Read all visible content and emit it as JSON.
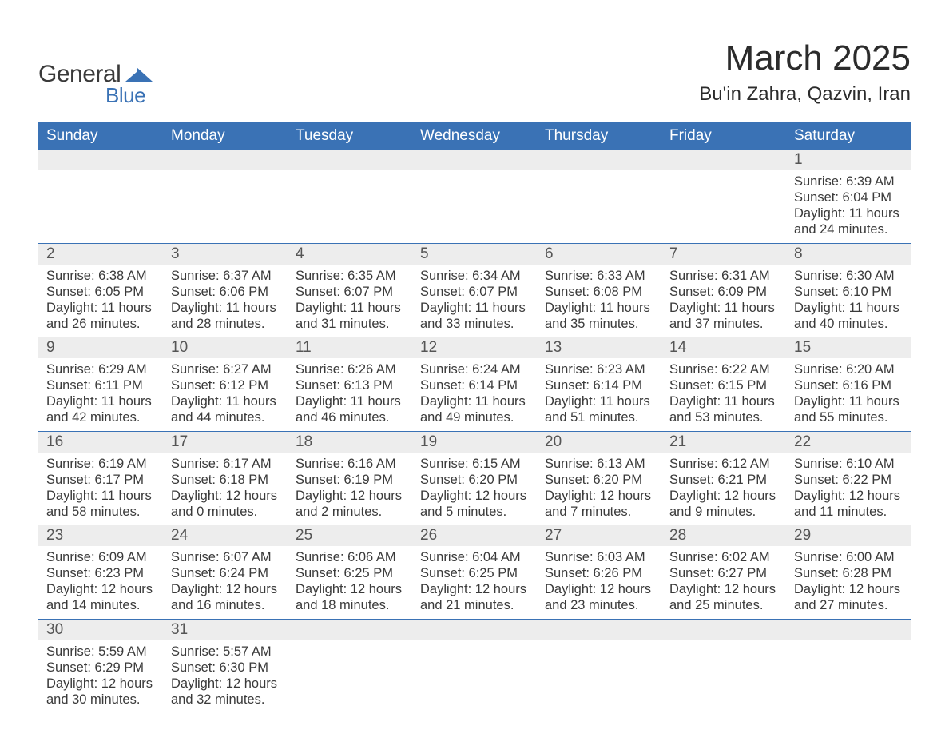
{
  "brand": {
    "word1": "General",
    "word2": "Blue",
    "shape_color": "#3a72b5",
    "text_color": "#3a3a3a"
  },
  "header": {
    "title": "March 2025",
    "location": "Bu'in Zahra, Qazvin, Iran"
  },
  "colors": {
    "header_bg": "#3a72b5",
    "header_text": "#ffffff",
    "daynum_bg": "#ededed",
    "border": "#3a72b5",
    "body_text": "#3a3a3a",
    "background": "#ffffff"
  },
  "typography": {
    "title_fontsize": 44,
    "location_fontsize": 24,
    "dayheader_fontsize": 19,
    "daynum_fontsize": 19,
    "details_fontsize": 16.5
  },
  "day_labels": [
    "Sunday",
    "Monday",
    "Tuesday",
    "Wednesday",
    "Thursday",
    "Friday",
    "Saturday"
  ],
  "weeks": [
    [
      null,
      null,
      null,
      null,
      null,
      null,
      {
        "n": "1",
        "sunrise": "Sunrise: 6:39 AM",
        "sunset": "Sunset: 6:04 PM",
        "daylight": "Daylight: 11 hours and 24 minutes."
      }
    ],
    [
      {
        "n": "2",
        "sunrise": "Sunrise: 6:38 AM",
        "sunset": "Sunset: 6:05 PM",
        "daylight": "Daylight: 11 hours and 26 minutes."
      },
      {
        "n": "3",
        "sunrise": "Sunrise: 6:37 AM",
        "sunset": "Sunset: 6:06 PM",
        "daylight": "Daylight: 11 hours and 28 minutes."
      },
      {
        "n": "4",
        "sunrise": "Sunrise: 6:35 AM",
        "sunset": "Sunset: 6:07 PM",
        "daylight": "Daylight: 11 hours and 31 minutes."
      },
      {
        "n": "5",
        "sunrise": "Sunrise: 6:34 AM",
        "sunset": "Sunset: 6:07 PM",
        "daylight": "Daylight: 11 hours and 33 minutes."
      },
      {
        "n": "6",
        "sunrise": "Sunrise: 6:33 AM",
        "sunset": "Sunset: 6:08 PM",
        "daylight": "Daylight: 11 hours and 35 minutes."
      },
      {
        "n": "7",
        "sunrise": "Sunrise: 6:31 AM",
        "sunset": "Sunset: 6:09 PM",
        "daylight": "Daylight: 11 hours and 37 minutes."
      },
      {
        "n": "8",
        "sunrise": "Sunrise: 6:30 AM",
        "sunset": "Sunset: 6:10 PM",
        "daylight": "Daylight: 11 hours and 40 minutes."
      }
    ],
    [
      {
        "n": "9",
        "sunrise": "Sunrise: 6:29 AM",
        "sunset": "Sunset: 6:11 PM",
        "daylight": "Daylight: 11 hours and 42 minutes."
      },
      {
        "n": "10",
        "sunrise": "Sunrise: 6:27 AM",
        "sunset": "Sunset: 6:12 PM",
        "daylight": "Daylight: 11 hours and 44 minutes."
      },
      {
        "n": "11",
        "sunrise": "Sunrise: 6:26 AM",
        "sunset": "Sunset: 6:13 PM",
        "daylight": "Daylight: 11 hours and 46 minutes."
      },
      {
        "n": "12",
        "sunrise": "Sunrise: 6:24 AM",
        "sunset": "Sunset: 6:14 PM",
        "daylight": "Daylight: 11 hours and 49 minutes."
      },
      {
        "n": "13",
        "sunrise": "Sunrise: 6:23 AM",
        "sunset": "Sunset: 6:14 PM",
        "daylight": "Daylight: 11 hours and 51 minutes."
      },
      {
        "n": "14",
        "sunrise": "Sunrise: 6:22 AM",
        "sunset": "Sunset: 6:15 PM",
        "daylight": "Daylight: 11 hours and 53 minutes."
      },
      {
        "n": "15",
        "sunrise": "Sunrise: 6:20 AM",
        "sunset": "Sunset: 6:16 PM",
        "daylight": "Daylight: 11 hours and 55 minutes."
      }
    ],
    [
      {
        "n": "16",
        "sunrise": "Sunrise: 6:19 AM",
        "sunset": "Sunset: 6:17 PM",
        "daylight": "Daylight: 11 hours and 58 minutes."
      },
      {
        "n": "17",
        "sunrise": "Sunrise: 6:17 AM",
        "sunset": "Sunset: 6:18 PM",
        "daylight": "Daylight: 12 hours and 0 minutes."
      },
      {
        "n": "18",
        "sunrise": "Sunrise: 6:16 AM",
        "sunset": "Sunset: 6:19 PM",
        "daylight": "Daylight: 12 hours and 2 minutes."
      },
      {
        "n": "19",
        "sunrise": "Sunrise: 6:15 AM",
        "sunset": "Sunset: 6:20 PM",
        "daylight": "Daylight: 12 hours and 5 minutes."
      },
      {
        "n": "20",
        "sunrise": "Sunrise: 6:13 AM",
        "sunset": "Sunset: 6:20 PM",
        "daylight": "Daylight: 12 hours and 7 minutes."
      },
      {
        "n": "21",
        "sunrise": "Sunrise: 6:12 AM",
        "sunset": "Sunset: 6:21 PM",
        "daylight": "Daylight: 12 hours and 9 minutes."
      },
      {
        "n": "22",
        "sunrise": "Sunrise: 6:10 AM",
        "sunset": "Sunset: 6:22 PM",
        "daylight": "Daylight: 12 hours and 11 minutes."
      }
    ],
    [
      {
        "n": "23",
        "sunrise": "Sunrise: 6:09 AM",
        "sunset": "Sunset: 6:23 PM",
        "daylight": "Daylight: 12 hours and 14 minutes."
      },
      {
        "n": "24",
        "sunrise": "Sunrise: 6:07 AM",
        "sunset": "Sunset: 6:24 PM",
        "daylight": "Daylight: 12 hours and 16 minutes."
      },
      {
        "n": "25",
        "sunrise": "Sunrise: 6:06 AM",
        "sunset": "Sunset: 6:25 PM",
        "daylight": "Daylight: 12 hours and 18 minutes."
      },
      {
        "n": "26",
        "sunrise": "Sunrise: 6:04 AM",
        "sunset": "Sunset: 6:25 PM",
        "daylight": "Daylight: 12 hours and 21 minutes."
      },
      {
        "n": "27",
        "sunrise": "Sunrise: 6:03 AM",
        "sunset": "Sunset: 6:26 PM",
        "daylight": "Daylight: 12 hours and 23 minutes."
      },
      {
        "n": "28",
        "sunrise": "Sunrise: 6:02 AM",
        "sunset": "Sunset: 6:27 PM",
        "daylight": "Daylight: 12 hours and 25 minutes."
      },
      {
        "n": "29",
        "sunrise": "Sunrise: 6:00 AM",
        "sunset": "Sunset: 6:28 PM",
        "daylight": "Daylight: 12 hours and 27 minutes."
      }
    ],
    [
      {
        "n": "30",
        "sunrise": "Sunrise: 5:59 AM",
        "sunset": "Sunset: 6:29 PM",
        "daylight": "Daylight: 12 hours and 30 minutes."
      },
      {
        "n": "31",
        "sunrise": "Sunrise: 5:57 AM",
        "sunset": "Sunset: 6:30 PM",
        "daylight": "Daylight: 12 hours and 32 minutes."
      },
      null,
      null,
      null,
      null,
      null
    ]
  ]
}
